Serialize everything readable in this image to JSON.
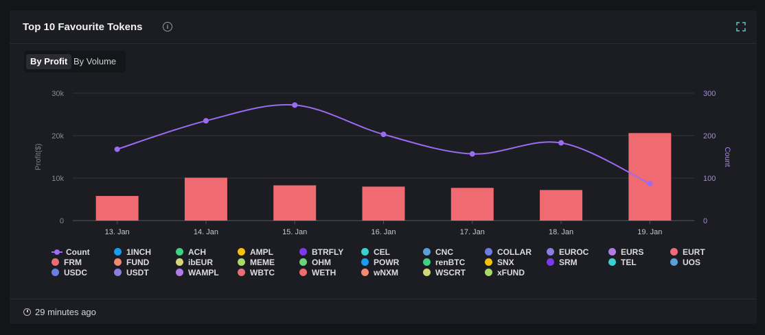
{
  "card": {
    "title": "Top 10 Favourite Tokens",
    "tabs": [
      {
        "label": "By Profit",
        "active": true
      },
      {
        "label": "By Volume",
        "active": false
      }
    ],
    "updated": "29 minutes ago"
  },
  "chart_data": {
    "type": "bar",
    "categories": [
      "13. Jan",
      "14. Jan",
      "15. Jan",
      "16. Jan",
      "17. Jan",
      "18. Jan",
      "19. Jan"
    ],
    "bar_values": [
      5800,
      10100,
      8300,
      8000,
      7700,
      7200,
      20600
    ],
    "bar_color": "#f06a72",
    "line": {
      "name": "Count",
      "values": [
        168,
        235,
        272,
        203,
        157,
        183,
        87
      ],
      "color": "#9b6cf2"
    },
    "ylabel": "Profit($)",
    "y2label": "Count",
    "ylim": [
      0,
      30000
    ],
    "y2lim": [
      0,
      300
    ],
    "yticks": [
      "0",
      "10k",
      "20k",
      "30k"
    ],
    "y2ticks": [
      "0",
      "100",
      "200",
      "300"
    ],
    "grid": true,
    "legend_position": "bottom",
    "legend": [
      {
        "name": "Count",
        "kind": "line",
        "color": "#9b6cf2"
      },
      {
        "name": "1INCH",
        "color": "#1a9bf0"
      },
      {
        "name": "ACH",
        "color": "#3fcf85"
      },
      {
        "name": "AMPL",
        "color": "#f2c20f"
      },
      {
        "name": "BTRFLY",
        "color": "#7c3aed"
      },
      {
        "name": "CEL",
        "color": "#3ccfd0"
      },
      {
        "name": "CNC",
        "color": "#5a9fd8"
      },
      {
        "name": "COLLAR",
        "color": "#6c7fe0"
      },
      {
        "name": "EUROC",
        "color": "#8a7fdc"
      },
      {
        "name": "EURS",
        "color": "#b07be6"
      },
      {
        "name": "EURT",
        "color": "#ee6b7e"
      },
      {
        "name": "FRM",
        "color": "#f06a72"
      },
      {
        "name": "FUND",
        "color": "#ef8b6e"
      },
      {
        "name": "ibEUR",
        "color": "#d3d77a"
      },
      {
        "name": "MEME",
        "color": "#a9d96b"
      },
      {
        "name": "OHM",
        "color": "#6ed27a"
      },
      {
        "name": "POWR",
        "color": "#1a9bf0"
      },
      {
        "name": "renBTC",
        "color": "#3fcf85"
      },
      {
        "name": "SNX",
        "color": "#f2c20f"
      },
      {
        "name": "SRM",
        "color": "#7c3aed"
      },
      {
        "name": "TEL",
        "color": "#3ccfd0"
      },
      {
        "name": "UOS",
        "color": "#5a9fd8"
      },
      {
        "name": "USDC",
        "color": "#6c7fe0"
      },
      {
        "name": "USDT",
        "color": "#8a7fdc"
      },
      {
        "name": "WAMPL",
        "color": "#b07be6"
      },
      {
        "name": "WBTC",
        "color": "#ee6b7e"
      },
      {
        "name": "WETH",
        "color": "#f06a72"
      },
      {
        "name": "wNXM",
        "color": "#ef8b6e"
      },
      {
        "name": "WSCRT",
        "color": "#d3d77a"
      },
      {
        "name": "xFUND",
        "color": "#a9d96b"
      }
    ]
  }
}
